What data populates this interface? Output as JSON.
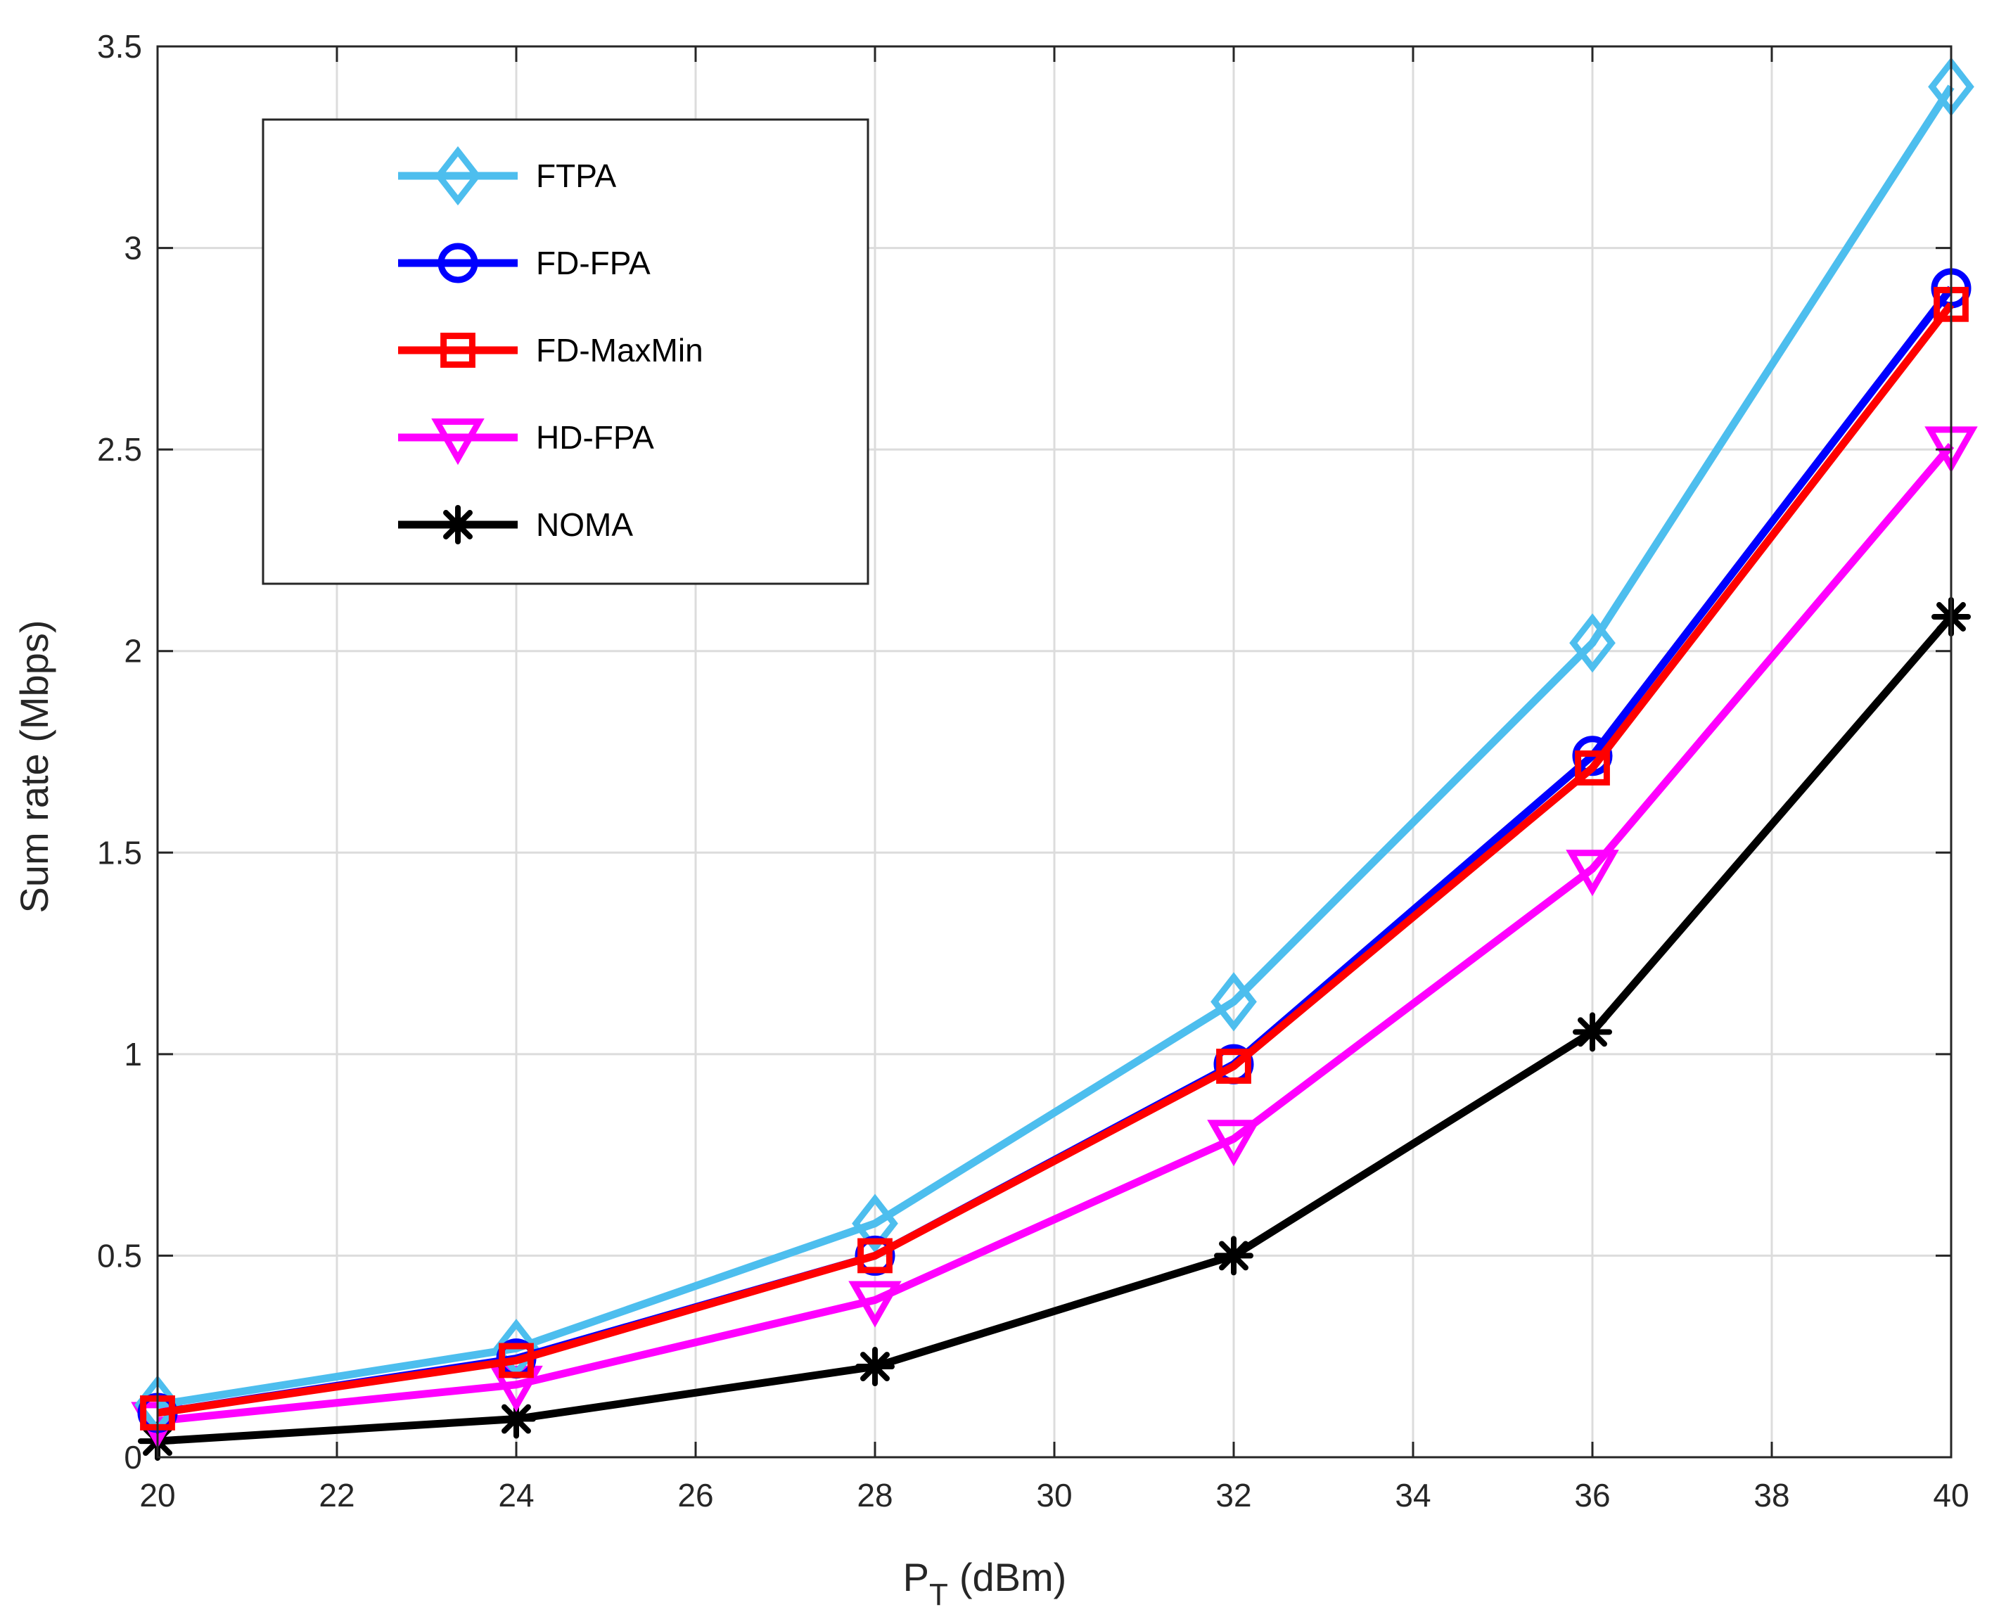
{
  "chart_data": {
    "type": "line",
    "xlabel_main": "P",
    "xlabel_sub": "T",
    "xlabel_unit": "(dBm)",
    "ylabel": "Sum rate (Mbps)",
    "xlim": [
      20,
      40
    ],
    "ylim": [
      0,
      3.5
    ],
    "grid": true,
    "legend_position": "top-left",
    "x_ticks": [
      "20",
      "22",
      "24",
      "26",
      "28",
      "30",
      "32",
      "34",
      "36",
      "38",
      "40"
    ],
    "y_ticks": [
      "0",
      "0.5",
      "1",
      "1.5",
      "2",
      "2.5",
      "3",
      "3.5"
    ],
    "x": [
      20,
      24,
      28,
      32,
      36,
      40
    ],
    "series": [
      {
        "name": "FTPA",
        "color": "#4DBEEE",
        "marker": "diamond",
        "values": [
          0.13,
          0.27,
          0.58,
          1.13,
          2.02,
          3.4
        ]
      },
      {
        "name": "FD-FPA",
        "color": "#0000FF",
        "marker": "circle",
        "values": [
          0.11,
          0.245,
          0.5,
          0.975,
          1.74,
          2.9
        ]
      },
      {
        "name": "FD-MaxMin",
        "color": "#FF0000",
        "marker": "square",
        "values": [
          0.11,
          0.24,
          0.5,
          0.97,
          1.71,
          2.86
        ]
      },
      {
        "name": "HD-FPA",
        "color": "#FF00FF",
        "marker": "triangle-down",
        "values": [
          0.09,
          0.18,
          0.39,
          0.79,
          1.46,
          2.51
        ]
      },
      {
        "name": "NOMA",
        "color": "#000000",
        "marker": "asterisk",
        "values": [
          0.04,
          0.095,
          0.225,
          0.5,
          1.055,
          2.085
        ]
      }
    ]
  }
}
